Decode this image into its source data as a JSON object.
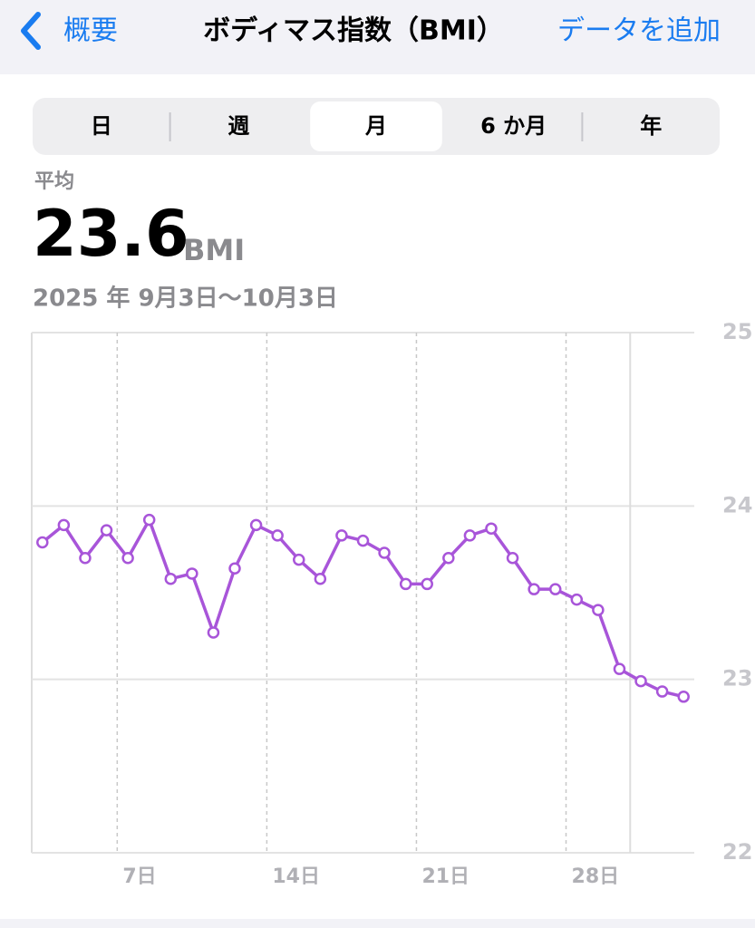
{
  "header": {
    "back": "概要",
    "title": "ボディマス指数（BMI）",
    "action": "データを追加"
  },
  "segments": {
    "items": [
      "日",
      "週",
      "月",
      "6 か月",
      "年"
    ],
    "selected": 2
  },
  "summary": {
    "label": "平均",
    "value": 23.6,
    "unit": "BMI",
    "range": "2025 年 9月3日〜10月3日"
  },
  "chart_data": {
    "type": "line",
    "categories": [
      null,
      null,
      null,
      null,
      "7日",
      null,
      null,
      null,
      null,
      null,
      null,
      "14日",
      null,
      null,
      null,
      null,
      null,
      null,
      "21日",
      null,
      null,
      null,
      null,
      null,
      null,
      "28日",
      null,
      null,
      null,
      null,
      null
    ],
    "series": [
      {
        "name": "BMI",
        "color": "#a855d9",
        "values": [
          23.79,
          23.89,
          23.7,
          23.86,
          23.7,
          23.92,
          23.58,
          23.61,
          23.27,
          23.64,
          23.89,
          23.83,
          23.69,
          23.58,
          23.83,
          23.8,
          23.73,
          23.55,
          23.55,
          23.7,
          23.83,
          23.87,
          23.7,
          23.52,
          23.52,
          23.46,
          23.4,
          23.06,
          22.99,
          22.93,
          22.9
        ]
      }
    ],
    "ylim": [
      22,
      25
    ],
    "yticks": [
      22,
      23,
      24,
      25
    ],
    "grid": true
  }
}
